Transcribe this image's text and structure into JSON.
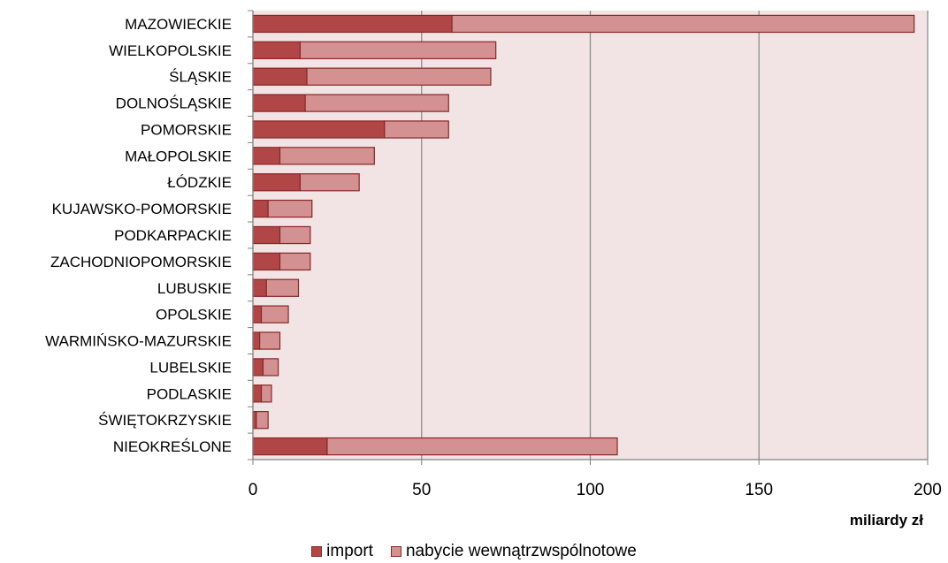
{
  "chart_data": {
    "type": "bar",
    "orientation": "horizontal",
    "stacked": true,
    "categories": [
      "MAZOWIECKIE",
      "WIELKOPOLSKIE",
      "ŚLĄSKIE",
      "DOLNOŚLĄSKIE",
      "POMORSKIE",
      "MAŁOPOLSKIE",
      "ŁÓDZKIE",
      "KUJAWSKO-POMORSKIE",
      "PODKARPACKIE",
      "ZACHODNIOPOMORSKIE",
      "LUBUSKIE",
      "OPOLSKIE",
      "WARMIŃSKO-MAZURSKIE",
      "LUBELSKIE",
      "PODLASKIE",
      "ŚWIĘTOKRZYSKIE",
      "NIEOKREŚLONE"
    ],
    "series": [
      {
        "name": "import",
        "color": "#b14646",
        "values": [
          59,
          14,
          16,
          15.5,
          39,
          8,
          14,
          4.5,
          8,
          8,
          4,
          2.5,
          2,
          3,
          2.5,
          1,
          22
        ]
      },
      {
        "name": "nabycie wewnątrzwspólnotowe",
        "color": "#d39191",
        "values": [
          137,
          58,
          54.5,
          42.5,
          19,
          28,
          17.5,
          13,
          9,
          9,
          9.5,
          8,
          6,
          4.5,
          3,
          3.5,
          86
        ]
      }
    ],
    "xlim": [
      0,
      200
    ],
    "xticks": [
      0,
      50,
      100,
      150,
      200
    ],
    "xlabel": "miliardy zł",
    "ylabel": "",
    "title": "",
    "grid": true,
    "legend_position": "bottom",
    "plot_background": "#f2e4e4",
    "edge_color": "#8b2626"
  }
}
